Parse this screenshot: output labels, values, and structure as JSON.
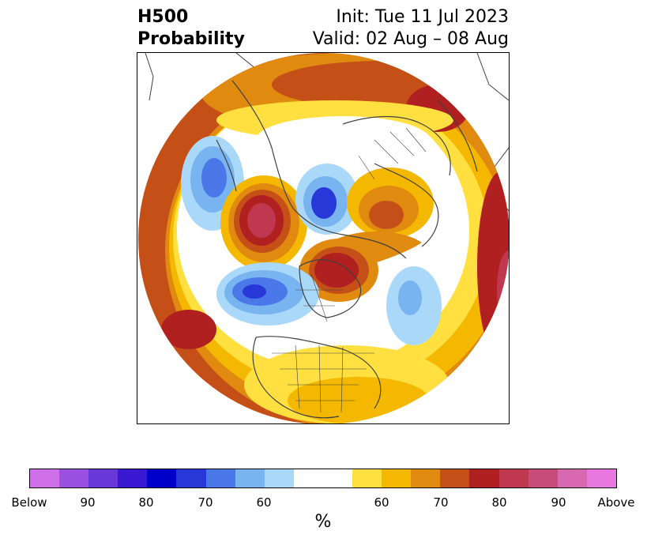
{
  "header": {
    "title_line1": "H500",
    "title_line2": "Probability",
    "init_text": "Init: Tue 11 Jul 2023",
    "valid_text": "Valid: 02 Aug – 08 Aug"
  },
  "map": {
    "projection": "north-polar-stereographic",
    "colors": {
      "above_90": "#c03080",
      "above_80": "#c0404a",
      "above_70_80": "#b02020",
      "above_65_70": "#c45018",
      "above_60_65": "#e08a10",
      "above_55_60": "#f5b800",
      "above_50_55": "#ffe040",
      "below_50_55": "#aad8f8",
      "below_55_60": "#78b4f0",
      "below_60_65": "#4a78e8",
      "below_65_70": "#2838d8",
      "neutral": "#ffffff",
      "borders": "#404040"
    }
  },
  "colorbar": {
    "colors": [
      "#d070e8",
      "#9a50e0",
      "#6838d8",
      "#3818d0",
      "#0000c8",
      "#2838d8",
      "#4a78e8",
      "#78b4f0",
      "#aad8f8",
      "#ffffff",
      "#ffe040",
      "#f5b800",
      "#e08a10",
      "#c45018",
      "#b02020",
      "#c03850",
      "#c84c78",
      "#d868b0",
      "#e878e0"
    ],
    "tick_labels": [
      "Below",
      "90",
      "80",
      "70",
      "60",
      "60",
      "70",
      "80",
      "90",
      "Above"
    ],
    "unit_label": "%"
  }
}
